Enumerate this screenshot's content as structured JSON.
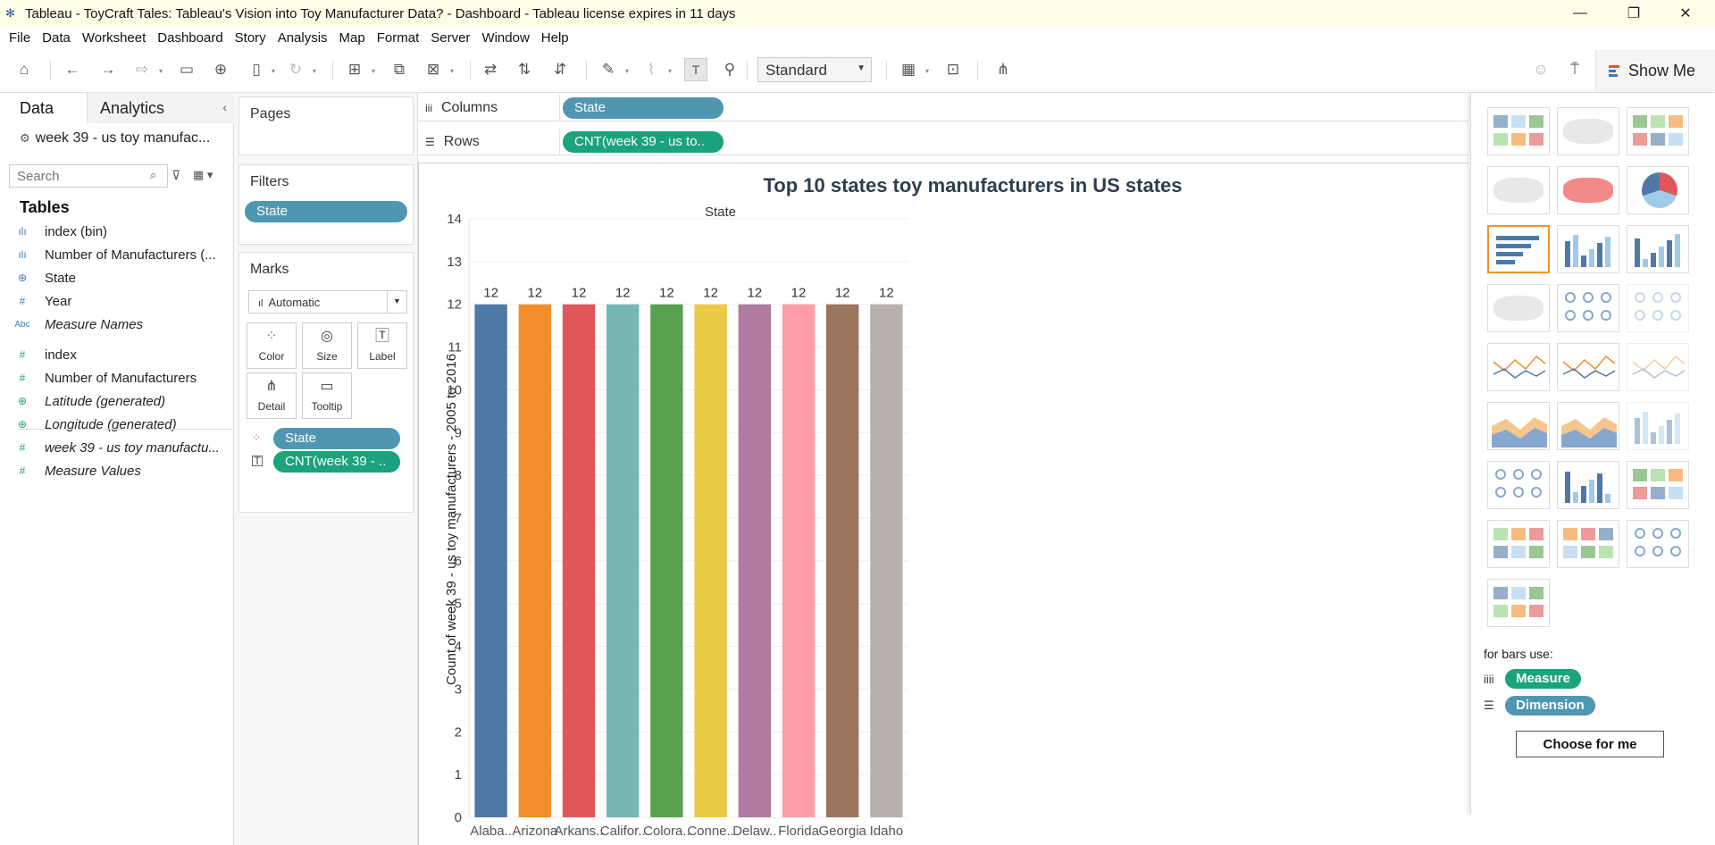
{
  "window": {
    "title": "Tableau - ToyCraft Tales: Tableau's Vision into Toy Manufacturer Data? - Dashboard - Tableau license expires in 11 days"
  },
  "menu": [
    "File",
    "Data",
    "Worksheet",
    "Dashboard",
    "Story",
    "Analysis",
    "Map",
    "Format",
    "Server",
    "Window",
    "Help"
  ],
  "toolbar": {
    "fit_select": "Standard",
    "show_me_label": "Show Me"
  },
  "left_panel": {
    "tab_data": "Data",
    "tab_analytics": "Analytics",
    "data_source": "week 39 - us toy manufac...",
    "search_placeholder": "Search",
    "tables_heading": "Tables",
    "fields": [
      {
        "label": "index (bin)",
        "icon": "bar-icon",
        "role": "dim",
        "italic": false
      },
      {
        "label": "Number of Manufacturers (...",
        "icon": "bar-icon",
        "role": "dim",
        "italic": false
      },
      {
        "label": "State",
        "icon": "globe-icon",
        "role": "dim",
        "italic": false
      },
      {
        "label": "Year",
        "icon": "hash-icon",
        "role": "dim",
        "italic": false
      },
      {
        "label": "Measure Names",
        "icon": "abc-icon",
        "role": "dim",
        "italic": true
      },
      {
        "label": "index",
        "icon": "hash-icon",
        "role": "mea",
        "italic": false
      },
      {
        "label": "Number of Manufacturers",
        "icon": "hash-icon",
        "role": "mea",
        "italic": false
      },
      {
        "label": "Latitude (generated)",
        "icon": "globe-icon",
        "role": "mea",
        "italic": true
      },
      {
        "label": "Longitude (generated)",
        "icon": "globe-icon",
        "role": "mea",
        "italic": true
      },
      {
        "label": "week 39 - us toy manufactu...",
        "icon": "hash-icon",
        "role": "mea",
        "italic": true
      },
      {
        "label": "Measure Values",
        "icon": "hash-icon",
        "role": "mea",
        "italic": true
      }
    ]
  },
  "cards": {
    "pages_label": "Pages",
    "filters_label": "Filters",
    "filter_pill": "State",
    "marks_label": "Marks",
    "mark_type": "Automatic",
    "mark_buttons": [
      "Color",
      "Size",
      "Label",
      "Detail",
      "Tooltip"
    ],
    "marks_pills": [
      "State",
      "CNT(week 39 - .."
    ]
  },
  "shelves": {
    "columns_label": "Columns",
    "columns_pill": "State",
    "rows_label": "Rows",
    "rows_pill": "CNT(week 39 - us to.."
  },
  "colors": {
    "dimension_pill": "#4f96b1",
    "measure_pill": "#1aa37c",
    "selected_thumb": "#f2922a"
  },
  "chart_data": {
    "type": "bar",
    "title": "Top 10 states toy manufacturers in US states",
    "column_header": "State",
    "ylabel": "Count of week 39 - us toy manufacturers - 2005 to 2016",
    "ylim": [
      0,
      14
    ],
    "yticks": [
      0,
      1,
      2,
      3,
      4,
      5,
      6,
      7,
      8,
      9,
      10,
      11,
      12,
      13,
      14
    ],
    "categories": [
      "Alaba..",
      "Arizona",
      "Arkans..",
      "Califor..",
      "Colora..",
      "Conne..",
      "Delaw..",
      "Florida",
      "Georgia",
      "Idaho"
    ],
    "values": [
      12,
      12,
      12,
      12,
      12,
      12,
      12,
      12,
      12,
      12
    ],
    "colors": [
      "#4e79a7",
      "#f28e2b",
      "#e15759",
      "#76b7b2",
      "#59a14f",
      "#edc948",
      "#b07aa1",
      "#ff9da7",
      "#9c755f",
      "#bab0ac"
    ],
    "grid": true,
    "data_labels": true
  },
  "show_me": {
    "for_label": "for bars use:",
    "measure_label": "Measure",
    "dimension_label": "Dimension",
    "choose_button": "Choose for me"
  }
}
